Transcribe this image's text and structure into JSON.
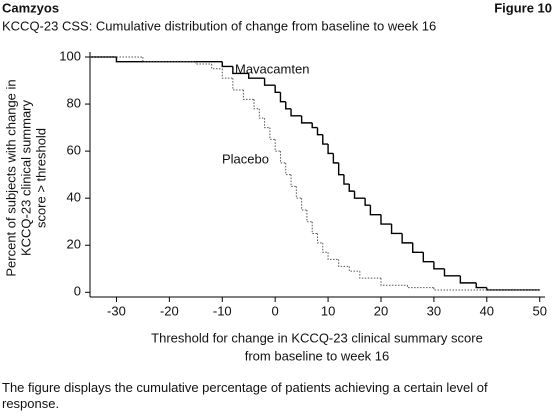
{
  "header": "Camzyos",
  "figure_label": "Figure 10",
  "footnote": "The figure displays the cumulative percentage of patients achieving a certain level of response.",
  "chart_data": {
    "type": "step",
    "title": "KCCQ-23 CSS: Cumulative distribution of change from baseline to week 16",
    "xlabel": [
      "Threshold for change in KCCQ-23 clinical summary score",
      "from baseline to week 16"
    ],
    "ylabel": [
      "Percent of subjects with change in",
      "KCCQ-23 clinical summary",
      "score > threshold"
    ],
    "xlim": [
      -35,
      51
    ],
    "ylim": [
      -2,
      100
    ],
    "xticks": [
      -30,
      -20,
      -10,
      0,
      10,
      20,
      30,
      40,
      50
    ],
    "yticks": [
      0,
      20,
      40,
      60,
      80,
      100
    ],
    "grid": false,
    "series": [
      {
        "name": "Mavacamten",
        "color": "#000000",
        "line_style": "solid",
        "x": [
          -35,
          -30,
          -10,
          -8,
          -5,
          -2,
          0,
          1,
          2,
          3,
          5,
          7,
          8,
          9,
          10,
          11,
          12,
          13,
          14,
          15,
          17,
          18,
          20,
          22,
          24,
          26,
          28,
          30,
          32,
          35,
          38,
          40,
          50
        ],
        "values": [
          100,
          98,
          96,
          93,
          91,
          88,
          85,
          81,
          78,
          75,
          72,
          70,
          67,
          63,
          59,
          55,
          50,
          46,
          43,
          40,
          37,
          33,
          29,
          25,
          21,
          17,
          13,
          10,
          7,
          4,
          2,
          1,
          1
        ]
      },
      {
        "name": "Placebo",
        "color": "#555555",
        "line_style": "dotted",
        "x": [
          -35,
          -30,
          -25,
          -15,
          -12,
          -10,
          -8,
          -6,
          -4,
          -3,
          -2,
          -1,
          0,
          1,
          2,
          3,
          4,
          5,
          6,
          7,
          8,
          9,
          10,
          12,
          14,
          16,
          20,
          25,
          30,
          50
        ],
        "values": [
          100,
          100,
          98,
          97,
          95,
          91,
          86,
          82,
          78,
          74,
          70,
          65,
          60,
          55,
          50,
          45,
          40,
          35,
          30,
          25,
          21,
          17,
          14,
          11,
          9,
          6,
          3,
          2,
          1,
          1
        ]
      }
    ]
  }
}
